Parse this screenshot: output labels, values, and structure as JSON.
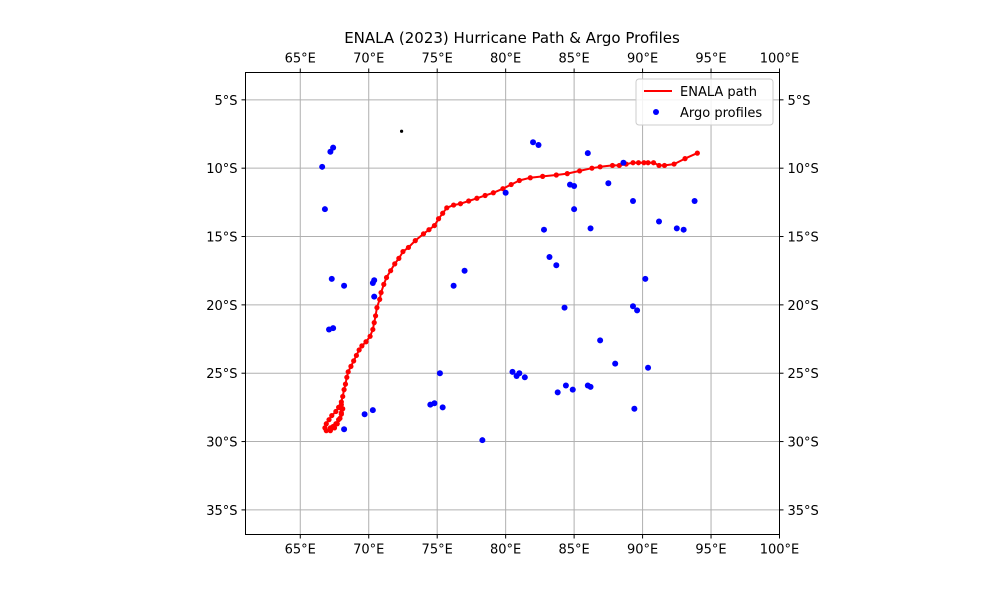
{
  "chart_data": {
    "type": "scatter",
    "title": "ENALA (2023) Hurricane Path & Argo Profiles",
    "xlim": [
      61,
      100
    ],
    "ylim": [
      -36.8,
      -3
    ],
    "x_ticks": [
      65,
      70,
      75,
      80,
      85,
      90,
      95,
      100
    ],
    "x_tick_labels": [
      "65°E",
      "70°E",
      "75°E",
      "80°E",
      "85°E",
      "90°E",
      "95°E",
      "100°E"
    ],
    "y_ticks": [
      -5,
      -10,
      -15,
      -20,
      -25,
      -30,
      -35
    ],
    "y_tick_labels": [
      "5°S",
      "10°S",
      "15°S",
      "20°S",
      "25°S",
      "30°S",
      "35°S"
    ],
    "grid": true,
    "legend_position": "top-right",
    "colors": {
      "path": "#ff0000",
      "argo": "#0000ff",
      "other": "#000000"
    },
    "series": [
      {
        "name": "ENALA path",
        "kind": "line",
        "points": [
          [
            94.0,
            -8.9
          ],
          [
            93.1,
            -9.3
          ],
          [
            92.3,
            -9.7
          ],
          [
            91.6,
            -9.8
          ],
          [
            91.2,
            -9.8
          ],
          [
            90.8,
            -9.6
          ],
          [
            90.4,
            -9.6
          ],
          [
            90.1,
            -9.6
          ],
          [
            89.7,
            -9.6
          ],
          [
            89.3,
            -9.6
          ],
          [
            88.8,
            -9.7
          ],
          [
            88.3,
            -9.8
          ],
          [
            87.8,
            -9.8
          ],
          [
            86.9,
            -9.9
          ],
          [
            86.3,
            -10.0
          ],
          [
            85.4,
            -10.2
          ],
          [
            84.5,
            -10.4
          ],
          [
            83.7,
            -10.5
          ],
          [
            82.7,
            -10.6
          ],
          [
            81.8,
            -10.7
          ],
          [
            81.0,
            -10.9
          ],
          [
            80.4,
            -11.2
          ],
          [
            79.8,
            -11.5
          ],
          [
            79.1,
            -11.8
          ],
          [
            78.5,
            -12.0
          ],
          [
            77.9,
            -12.2
          ],
          [
            77.3,
            -12.4
          ],
          [
            76.7,
            -12.6
          ],
          [
            76.2,
            -12.7
          ],
          [
            75.7,
            -12.9
          ],
          [
            75.4,
            -13.3
          ],
          [
            75.1,
            -13.7
          ],
          [
            74.8,
            -14.2
          ],
          [
            74.4,
            -14.5
          ],
          [
            74.0,
            -14.8
          ],
          [
            73.4,
            -15.3
          ],
          [
            72.9,
            -15.8
          ],
          [
            72.5,
            -16.1
          ],
          [
            72.2,
            -16.6
          ],
          [
            71.9,
            -17.0
          ],
          [
            71.6,
            -17.5
          ],
          [
            71.3,
            -18.0
          ],
          [
            71.1,
            -18.5
          ],
          [
            70.9,
            -19.1
          ],
          [
            70.8,
            -19.6
          ],
          [
            70.6,
            -20.2
          ],
          [
            70.5,
            -20.8
          ],
          [
            70.4,
            -21.3
          ],
          [
            70.3,
            -21.8
          ],
          [
            70.1,
            -22.3
          ],
          [
            69.8,
            -22.7
          ],
          [
            69.5,
            -23.0
          ],
          [
            69.3,
            -23.3
          ],
          [
            69.1,
            -23.7
          ],
          [
            68.9,
            -24.1
          ],
          [
            68.7,
            -24.5
          ],
          [
            68.5,
            -24.9
          ],
          [
            68.4,
            -25.3
          ],
          [
            68.3,
            -25.8
          ],
          [
            68.2,
            -26.2
          ],
          [
            68.1,
            -26.7
          ],
          [
            68.0,
            -27.1
          ],
          [
            67.9,
            -27.5
          ],
          [
            68.0,
            -27.9
          ],
          [
            67.9,
            -28.3
          ],
          [
            67.7,
            -28.7
          ],
          [
            67.5,
            -29.0
          ],
          [
            67.2,
            -29.2
          ],
          [
            66.9,
            -29.2
          ],
          [
            66.8,
            -29.0
          ],
          [
            66.9,
            -28.7
          ],
          [
            67.1,
            -28.4
          ],
          [
            67.3,
            -28.1
          ],
          [
            67.6,
            -27.8
          ],
          [
            67.8,
            -27.5
          ],
          [
            68.0,
            -27.3
          ],
          [
            68.1,
            -27.6
          ],
          [
            68.0,
            -28.0
          ],
          [
            67.8,
            -28.4
          ],
          [
            67.6,
            -28.7
          ],
          [
            67.4,
            -28.9
          ],
          [
            67.2,
            -29.0
          ]
        ]
      },
      {
        "name": "Argo profiles",
        "kind": "scatter",
        "points": [
          [
            67.4,
            -8.5
          ],
          [
            67.2,
            -8.8
          ],
          [
            66.6,
            -9.9
          ],
          [
            66.8,
            -13.0
          ],
          [
            67.3,
            -18.1
          ],
          [
            68.2,
            -18.6
          ],
          [
            67.4,
            -21.7
          ],
          [
            67.1,
            -21.8
          ],
          [
            70.4,
            -18.2
          ],
          [
            70.3,
            -18.4
          ],
          [
            70.4,
            -19.4
          ],
          [
            70.3,
            -27.7
          ],
          [
            69.7,
            -28.0
          ],
          [
            68.2,
            -29.1
          ],
          [
            74.5,
            -27.3
          ],
          [
            74.8,
            -27.2
          ],
          [
            75.4,
            -27.5
          ],
          [
            75.2,
            -25.0
          ],
          [
            76.2,
            -18.6
          ],
          [
            77.0,
            -17.5
          ],
          [
            78.3,
            -29.9
          ],
          [
            80.0,
            -11.8
          ],
          [
            80.5,
            -24.9
          ],
          [
            80.8,
            -25.2
          ],
          [
            81.0,
            -25.0
          ],
          [
            81.4,
            -25.3
          ],
          [
            82.0,
            -8.1
          ],
          [
            82.4,
            -8.3
          ],
          [
            82.8,
            -14.5
          ],
          [
            83.2,
            -16.5
          ],
          [
            83.7,
            -17.1
          ],
          [
            83.8,
            -26.4
          ],
          [
            84.3,
            -20.2
          ],
          [
            84.4,
            -25.9
          ],
          [
            84.7,
            -11.2
          ],
          [
            85.0,
            -11.3
          ],
          [
            85.0,
            -13.0
          ],
          [
            84.9,
            -26.2
          ],
          [
            86.0,
            -8.9
          ],
          [
            86.2,
            -14.4
          ],
          [
            86.0,
            -25.9
          ],
          [
            86.2,
            -26.0
          ],
          [
            86.9,
            -22.6
          ],
          [
            87.5,
            -11.1
          ],
          [
            88.0,
            -24.3
          ],
          [
            88.6,
            -9.6
          ],
          [
            89.3,
            -12.4
          ],
          [
            89.3,
            -20.1
          ],
          [
            89.6,
            -20.4
          ],
          [
            89.4,
            -27.6
          ],
          [
            90.2,
            -18.1
          ],
          [
            90.4,
            -24.6
          ],
          [
            91.2,
            -13.9
          ],
          [
            92.5,
            -14.4
          ],
          [
            93.0,
            -14.5
          ],
          [
            93.8,
            -12.4
          ]
        ]
      },
      {
        "kind": "scatter",
        "points": [
          [
            72.4,
            -7.3
          ]
        ]
      }
    ],
    "legend": [
      {
        "label": "ENALA path",
        "kind": "line",
        "color": "#ff0000"
      },
      {
        "label": "Argo profiles",
        "kind": "marker",
        "color": "#0000ff"
      }
    ]
  }
}
